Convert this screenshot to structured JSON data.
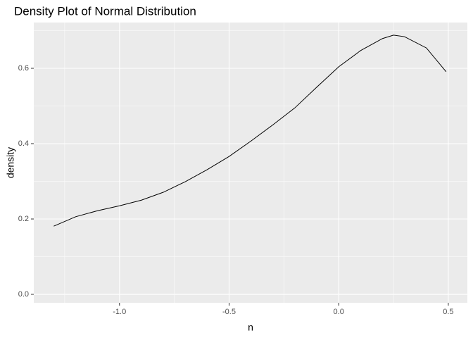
{
  "chart_data": {
    "type": "line",
    "title": "Density Plot of Normal Distribution",
    "x_label": "n",
    "y_label": "density",
    "x": [
      -1.3,
      -1.2,
      -1.1,
      -1.0,
      -0.9,
      -0.8,
      -0.7,
      -0.6,
      -0.5,
      -0.4,
      -0.3,
      -0.2,
      -0.1,
      0.0,
      0.1,
      0.2,
      0.25,
      0.3,
      0.4,
      0.49
    ],
    "series": [
      {
        "name": "density",
        "color": "#000000",
        "values": [
          0.181,
          0.206,
          0.222,
          0.235,
          0.25,
          0.271,
          0.299,
          0.331,
          0.366,
          0.407,
          0.45,
          0.495,
          0.55,
          0.604,
          0.647,
          0.679,
          0.688,
          0.684,
          0.654,
          0.591
        ]
      }
    ],
    "xlim": [
      -1.391,
      0.587
    ],
    "xticks": [
      {
        "value": -1.0,
        "label": "-1.0"
      },
      -0.5,
      {
        "value": 0.0,
        "label": "0.0"
      },
      0.5
    ],
    "ylim": [
      -0.0224,
      0.7215
    ],
    "yticks": [
      {
        "value": 0.0,
        "label": "0.0"
      },
      0.2,
      0.4,
      0.6
    ],
    "grid": true
  }
}
